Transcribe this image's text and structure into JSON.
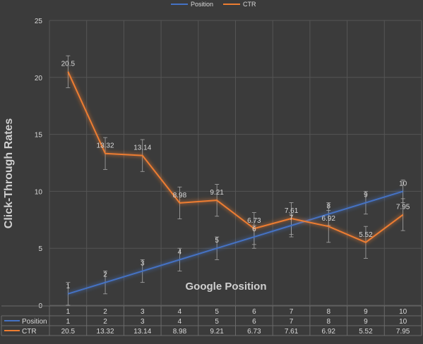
{
  "chart_data": {
    "type": "line",
    "ylabel": "Click-Through Rates",
    "xlabel": "Google Position",
    "categories": [
      "1",
      "2",
      "3",
      "4",
      "5",
      "6",
      "7",
      "8",
      "9",
      "10"
    ],
    "ylim": [
      0,
      25
    ],
    "yticks": [
      0,
      5,
      10,
      15,
      20,
      25
    ],
    "grid": true,
    "legend_position": "top",
    "error_bars": true,
    "series": [
      {
        "name": "Position",
        "color": "#4472c4",
        "values": [
          1,
          2,
          3,
          4,
          5,
          6,
          7,
          8,
          9,
          10
        ],
        "labels": [
          "1",
          "2",
          "3",
          "4",
          "5",
          "6",
          "7",
          "8",
          "9",
          "10"
        ]
      },
      {
        "name": "CTR",
        "color": "#ed7d31",
        "values": [
          20.5,
          13.32,
          13.14,
          8.98,
          9.21,
          6.73,
          7.61,
          6.92,
          5.52,
          7.95
        ],
        "labels": [
          "20.5",
          "13.32",
          "13.14",
          "8.98",
          "9.21",
          "6.73",
          "7.61",
          "6.92",
          "5.52",
          "7.95"
        ]
      }
    ],
    "table": {
      "rows": [
        {
          "name": "Position",
          "cells": [
            "1",
            "2",
            "3",
            "4",
            "5",
            "6",
            "7",
            "8",
            "9",
            "10"
          ]
        },
        {
          "name": "CTR",
          "cells": [
            "20.5",
            "13.32",
            "13.14",
            "8.98",
            "9.21",
            "6.73",
            "7.61",
            "6.92",
            "5.52",
            "7.95"
          ]
        }
      ]
    }
  }
}
